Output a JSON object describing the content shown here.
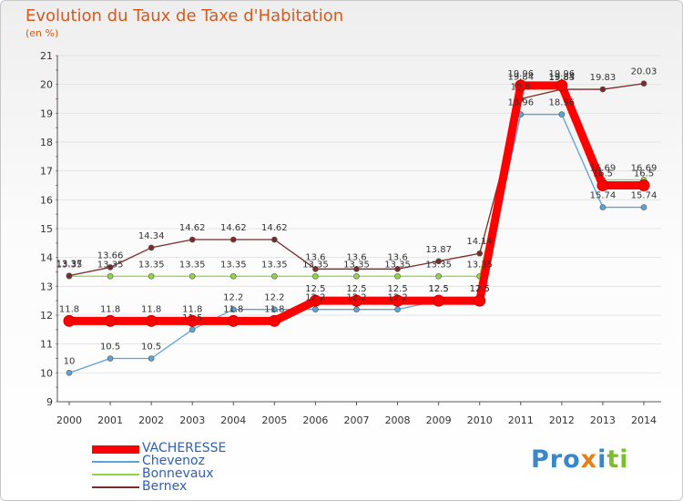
{
  "title": "Evolution du Taux de Taxe d'Habitation",
  "subtitle": "(en %)",
  "brand": {
    "parts": [
      {
        "text": "Pro",
        "color": "#3a86c8"
      },
      {
        "text": "x",
        "color": "#e8801a"
      },
      {
        "text": "i",
        "color": "#3a86c8"
      },
      {
        "text": "ti",
        "color": "#7cbf2a"
      }
    ]
  },
  "chart_data": {
    "type": "line",
    "title": "Evolution du Taux de Taxe d'Habitation",
    "ylabel": "(en %)",
    "xlabel": "",
    "x": [
      "2000",
      "2001",
      "2002",
      "2003",
      "2004",
      "2005",
      "2006",
      "2007",
      "2008",
      "2009",
      "2010",
      "2011",
      "2012",
      "2013",
      "2014"
    ],
    "ylim": [
      9,
      21
    ],
    "yticks": [
      "9",
      "10",
      "11",
      "12",
      "13",
      "14",
      "15",
      "16",
      "17",
      "18",
      "19",
      "20",
      "21"
    ],
    "legend_position": "bottom-left",
    "series": [
      {
        "name": "VACHERESSE",
        "color": "#ff0000",
        "values": [
          11.8,
          11.8,
          11.8,
          11.8,
          11.8,
          11.8,
          12.5,
          12.5,
          12.5,
          12.5,
          12.5,
          19.96,
          19.96,
          16.5,
          16.5
        ],
        "labels": [
          "11.8",
          "11.8",
          "11.8",
          "11.8",
          "11.8",
          "11.8",
          "12.5",
          "12.5",
          "12.5",
          "12.5",
          "12.5",
          "19.96",
          "19.96",
          "16.5",
          "16.5"
        ]
      },
      {
        "name": "Chevenoz",
        "color": "#5ba3d8",
        "values": [
          10,
          10.5,
          10.5,
          11.5,
          12.2,
          12.2,
          12.2,
          12.2,
          12.2,
          12.5,
          12.5,
          18.96,
          18.96,
          15.74,
          15.74
        ],
        "labels": [
          "10",
          "10.5",
          "10.5",
          "11.5",
          "12.2",
          "12.2",
          "12.2",
          "12.2",
          "12.2",
          "12.5",
          "12.5",
          "18.96",
          "18.96",
          "15.74",
          "15.74"
        ]
      },
      {
        "name": "Bonnevaux",
        "color": "#8ed643",
        "values": [
          13.35,
          13.35,
          13.35,
          13.35,
          13.35,
          13.35,
          13.35,
          13.35,
          13.35,
          13.35,
          13.35,
          19.84,
          19.84,
          16.69,
          16.69
        ],
        "labels": [
          "13.35",
          "13.35",
          "13.35",
          "13.35",
          "13.35",
          "13.35",
          "13.35",
          "13.35",
          "13.35",
          "13.35",
          "13.35",
          "19.84",
          "19.84",
          "16.69",
          "16.69"
        ]
      },
      {
        "name": "Bernex",
        "color": "#7a2a2a",
        "values": [
          13.37,
          13.66,
          14.34,
          14.62,
          14.62,
          14.62,
          13.6,
          13.6,
          13.6,
          13.87,
          14.14,
          19.5,
          19.83,
          19.83,
          20.03
        ],
        "labels": [
          "13.37",
          "13.66",
          "14.34",
          "14.62",
          "14.62",
          "14.62",
          "13.6",
          "13.6",
          "13.6",
          "13.87",
          "14.14",
          "19.5",
          "19.83",
          "19.83",
          "20.03"
        ]
      }
    ]
  }
}
